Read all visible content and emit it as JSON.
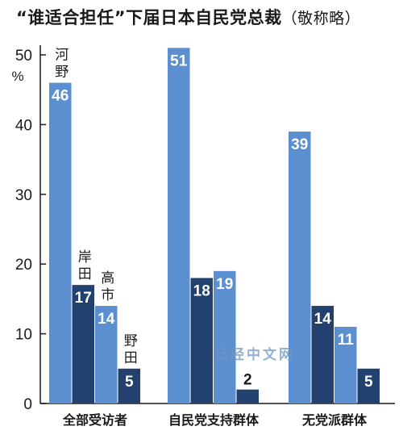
{
  "title": {
    "main": "“谁适合担任”下届日本自民党总裁",
    "tail": "（敬称略）"
  },
  "watermark": "日经中文网",
  "colors": {
    "light_bar": "#5b8fcf",
    "dark_bar": "#22416f",
    "axis": "#1a1a1a"
  },
  "chart_data": {
    "type": "bar",
    "title": "“谁适合担任”下届日本自民党总裁（敬称略）",
    "ylabel": "%",
    "ylim": [
      0,
      50
    ],
    "yticks": [
      "0",
      "10",
      "20",
      "30",
      "40",
      "50"
    ],
    "categories": [
      "全部受访者",
      "自民党支持群体",
      "无党派群体"
    ],
    "series": [
      {
        "name": "河野",
        "values": [
          46,
          51,
          39
        ]
      },
      {
        "name": "岸田",
        "values": [
          17,
          18,
          14
        ]
      },
      {
        "name": "高市",
        "values": [
          14,
          19,
          11
        ]
      },
      {
        "name": "野田",
        "values": [
          5,
          2,
          5
        ]
      }
    ],
    "grid": false,
    "legend": "labels on first group bars"
  }
}
